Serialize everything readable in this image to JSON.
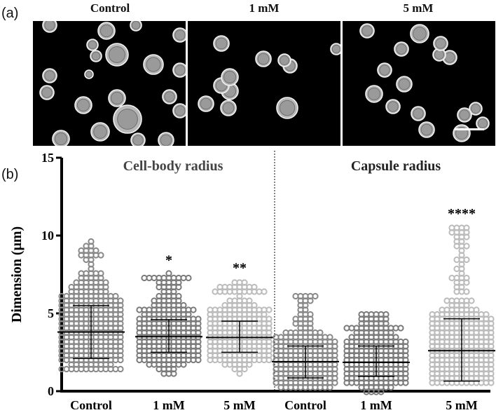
{
  "panel_a": {
    "label": "(a)",
    "images": [
      {
        "title": "Control"
      },
      {
        "title": "1 mM"
      },
      {
        "title": "5 mM"
      }
    ]
  },
  "panel_b": {
    "label": "(b)"
  },
  "chart_data": {
    "type": "scatter",
    "title": "",
    "ylabel": "Dimension (μm)",
    "ylim": [
      0,
      15
    ],
    "yticks": [
      0,
      5,
      10,
      15
    ],
    "categories": [
      "Control",
      "1 mM",
      "5 mM",
      "Control",
      "1 mM",
      "5 mM"
    ],
    "group_labels": [
      "Cell-body radius",
      "Capsule radius"
    ],
    "groups": [
      {
        "name": "Cell-body radius",
        "series": [
          {
            "category": "Control",
            "min": 1.4,
            "max": 9.5,
            "mean": 3.8,
            "sd_low": 2.1,
            "sd_high": 5.5,
            "color": "#888888",
            "significance": ""
          },
          {
            "category": "1 mM",
            "min": 1.0,
            "max": 7.5,
            "mean": 3.5,
            "sd_low": 2.5,
            "sd_high": 4.6,
            "color": "#7a7a7a",
            "significance": "*"
          },
          {
            "category": "5 mM",
            "min": 1.2,
            "max": 7.0,
            "mean": 3.45,
            "sd_low": 2.5,
            "sd_high": 4.5,
            "color": "#bbbbbb",
            "significance": "**"
          }
        ]
      },
      {
        "name": "Capsule radius",
        "series": [
          {
            "category": "Control",
            "min": 0.3,
            "max": 6.2,
            "mean": 1.9,
            "sd_low": 0.85,
            "sd_high": 2.9,
            "color": "#888888",
            "significance": ""
          },
          {
            "category": "1 mM",
            "min": 0.1,
            "max": 5.0,
            "mean": 1.85,
            "sd_low": 0.95,
            "sd_high": 2.9,
            "color": "#7a7a7a",
            "significance": ""
          },
          {
            "category": "5 mM",
            "min": 0.4,
            "max": 10.5,
            "mean": 2.6,
            "sd_low": 0.65,
            "sd_high": 4.65,
            "color": "#bbbbbb",
            "significance": "****"
          }
        ]
      }
    ],
    "grid": false,
    "legend": "none"
  }
}
